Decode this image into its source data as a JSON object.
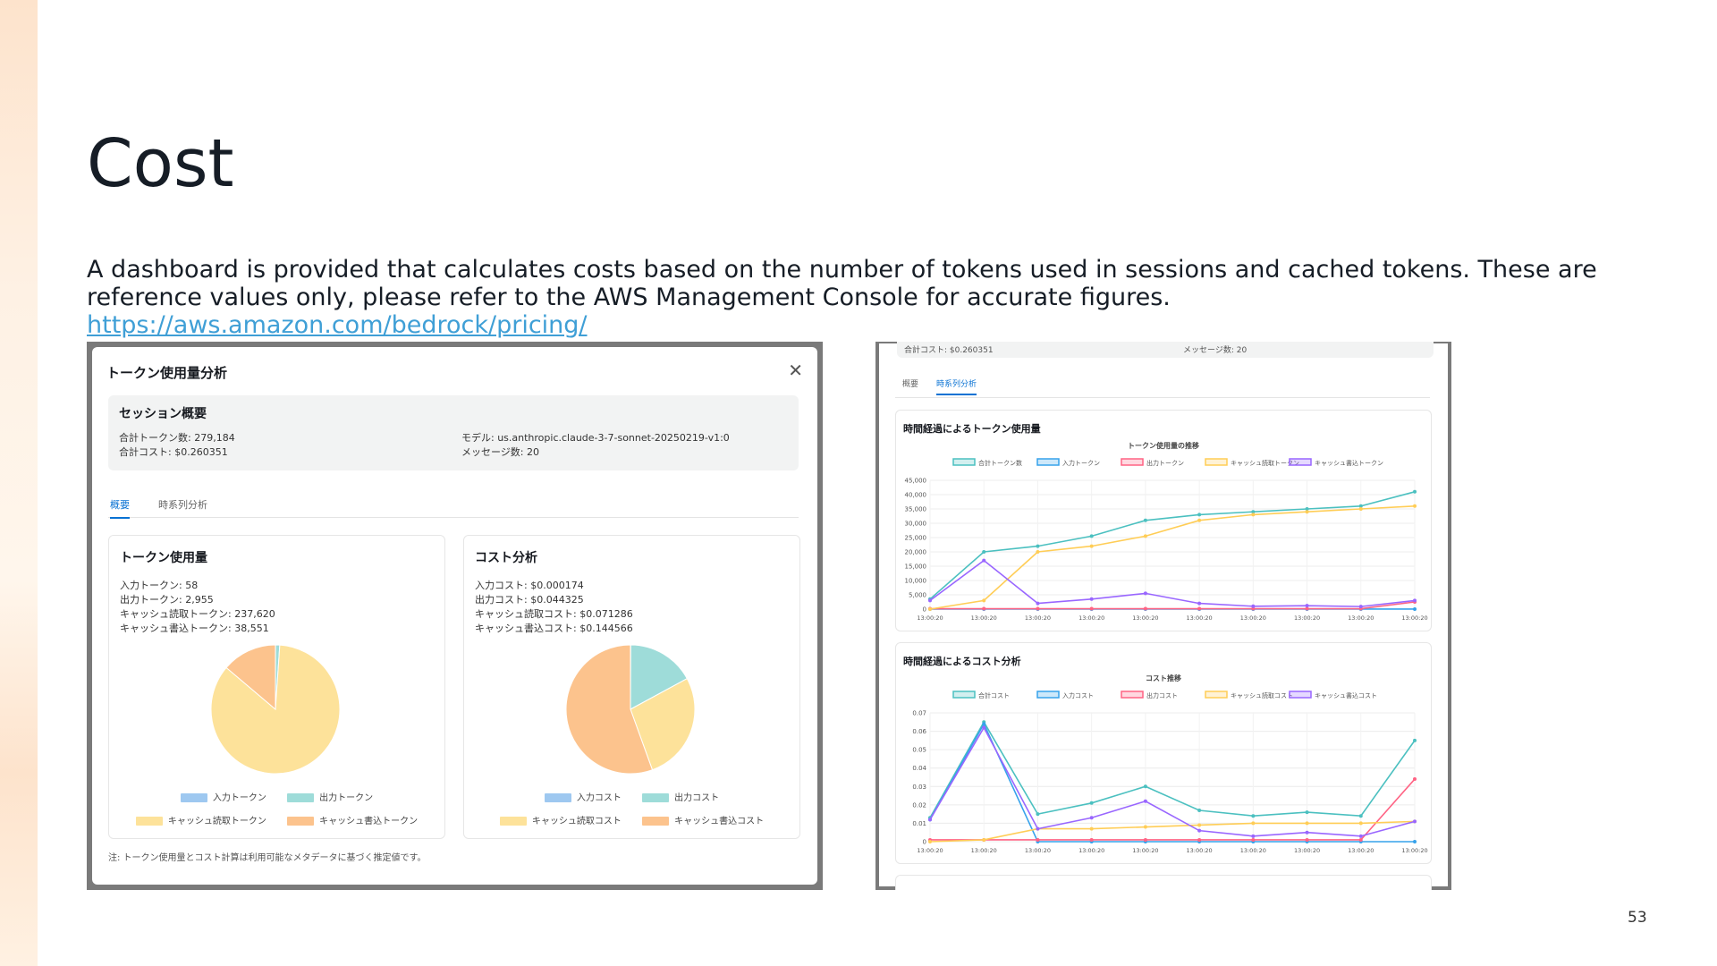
{
  "slide": {
    "title": "Cost",
    "description": "A dashboard is provided that calculates costs based on the number of tokens used in sessions and cached tokens. These are reference values only, please refer to the AWS Management Console for accurate figures.",
    "link": "https://aws.amazon.com/bedrock/pricing/",
    "page_number": "53"
  },
  "modal": {
    "title": "トークン使用量分析",
    "summary": {
      "heading": "セッション概要",
      "total_tokens": "合計トークン数: 279,184",
      "total_cost": "合計コスト: $0.260351",
      "model": "モデル: us.anthropic.claude-3-7-sonnet-20250219-v1:0",
      "messages": "メッセージ数: 20"
    },
    "tabs": [
      {
        "label": "概要"
      },
      {
        "label": "時系列分析"
      }
    ],
    "token_card": {
      "title": "トークン使用量",
      "lines": [
        "入力トークン: 58",
        "出力トークン: 2,955",
        "キャッシュ読取トークン: 237,620",
        "キャッシュ書込トークン: 38,551"
      ],
      "legend": [
        "入力トークン",
        "出力トークン",
        "キャッシュ読取トークン",
        "キャッシュ書込トークン"
      ]
    },
    "cost_card": {
      "title": "コスト分析",
      "lines": [
        "入力コスト: $0.000174",
        "出力コスト: $0.044325",
        "キャッシュ読取コスト: $0.071286",
        "キャッシュ書込コスト: $0.144566"
      ],
      "legend": [
        "入力コスト",
        "出力コスト",
        "キャッシュ読取コスト",
        "キャッシュ書込コスト"
      ]
    },
    "footnote": "注: トークン使用量とコスト計算は利用可能なメタデータに基づく推定値です。"
  },
  "colors": {
    "blue": "#9ec8f0",
    "teal": "#9edcd9",
    "yellow": "#fde29a",
    "orange": "#fcc38d",
    "tab_active": "#0972d3"
  },
  "timeseries": {
    "clipped_total_cost": "合計コスト: $0.260351",
    "clipped_messages": "メッセージ数: 20",
    "tabs": [
      {
        "label": "概要"
      },
      {
        "label": "時系列分析"
      }
    ],
    "token_panel_title": "時間経過によるトークン使用量",
    "cost_panel_title": "時間経過によるコスト分析"
  },
  "chart_data": [
    {
      "type": "pie",
      "labels": [
        "入力トークン",
        "出力トークン",
        "キャッシュ読取トークン",
        "キャッシュ書込トークン"
      ],
      "values": [
        58,
        2955,
        237620,
        38551
      ],
      "colors": [
        "#9ec8f0",
        "#9edcd9",
        "#fde29a",
        "#fcc38d"
      ],
      "legend": "bottom"
    },
    {
      "type": "pie",
      "labels": [
        "入力コスト",
        "出力コスト",
        "キャッシュ読取コスト",
        "キャッシュ書込コスト"
      ],
      "values": [
        0.000174,
        0.044325,
        0.071286,
        0.144566
      ],
      "colors": [
        "#9ec8f0",
        "#9edcd9",
        "#fde29a",
        "#fcc38d"
      ],
      "legend": "bottom"
    },
    {
      "type": "line",
      "title": "トークン使用量の推移",
      "categories": [
        "13:00:20",
        "13:00:20",
        "13:00:20",
        "13:00:20",
        "13:00:20",
        "13:00:20",
        "13:00:20",
        "13:00:20",
        "13:00:20",
        "13:00:20"
      ],
      "ylim": [
        0,
        45000
      ],
      "yticks": [
        "0",
        "5,000",
        "10,000",
        "15,000",
        "20,000",
        "25,000",
        "30,000",
        "35,000",
        "40,000",
        "45,000"
      ],
      "legend": "top",
      "grid": true,
      "series": [
        {
          "name": "合計トークン数",
          "color": "#4bc0c0",
          "values": [
            3500,
            20000,
            22000,
            25500,
            31000,
            33000,
            34000,
            35000,
            36000,
            41000
          ]
        },
        {
          "name": "入力トークン",
          "color": "#36a2eb",
          "values": [
            10,
            10,
            10,
            10,
            10,
            10,
            10,
            10,
            10,
            10
          ]
        },
        {
          "name": "出力トークン",
          "color": "#ff6384",
          "values": [
            150,
            150,
            150,
            150,
            150,
            150,
            150,
            150,
            150,
            2500
          ]
        },
        {
          "name": "キャッシュ読取トークン",
          "color": "#ffcd56",
          "values": [
            0,
            3000,
            20000,
            22000,
            25500,
            31000,
            33000,
            34000,
            35000,
            36000
          ]
        },
        {
          "name": "キャッシュ書込トークン",
          "color": "#9966ff",
          "values": [
            3000,
            17000,
            2000,
            3500,
            5500,
            2000,
            1000,
            1200,
            900,
            3000
          ]
        }
      ]
    },
    {
      "type": "line",
      "title": "コスト推移",
      "categories": [
        "13:00:20",
        "13:00:20",
        "13:00:20",
        "13:00:20",
        "13:00:20",
        "13:00:20",
        "13:00:20",
        "13:00:20",
        "13:00:20",
        "13:00:20"
      ],
      "ylim": [
        0,
        0.07
      ],
      "yticks": [
        "0",
        "0.01",
        "0.02",
        "0.03",
        "0.04",
        "0.05",
        "0.06",
        "0.07"
      ],
      "legend": "top",
      "grid": true,
      "series": [
        {
          "name": "合計コスト",
          "color": "#4bc0c0",
          "values": [
            0.013,
            0.065,
            0.015,
            0.021,
            0.03,
            0.017,
            0.014,
            0.016,
            0.014,
            0.055
          ]
        },
        {
          "name": "入力コスト",
          "color": "#36a2eb",
          "values": [
            0.012,
            0.064,
            0,
            0,
            0,
            0,
            0,
            0,
            0,
            0
          ]
        },
        {
          "name": "出力コスト",
          "color": "#ff6384",
          "values": [
            0.001,
            0.001,
            0.001,
            0.001,
            0.001,
            0.001,
            0.001,
            0.001,
            0.001,
            0.034
          ]
        },
        {
          "name": "キャッシュ読取コスト",
          "color": "#ffcd56",
          "values": [
            0,
            0.001,
            0.007,
            0.007,
            0.008,
            0.009,
            0.01,
            0.01,
            0.01,
            0.011
          ]
        },
        {
          "name": "キャッシュ書込コスト",
          "color": "#9966ff",
          "values": [
            0.012,
            0.062,
            0.007,
            0.013,
            0.022,
            0.006,
            0.003,
            0.005,
            0.003,
            0.011
          ]
        }
      ]
    }
  ]
}
